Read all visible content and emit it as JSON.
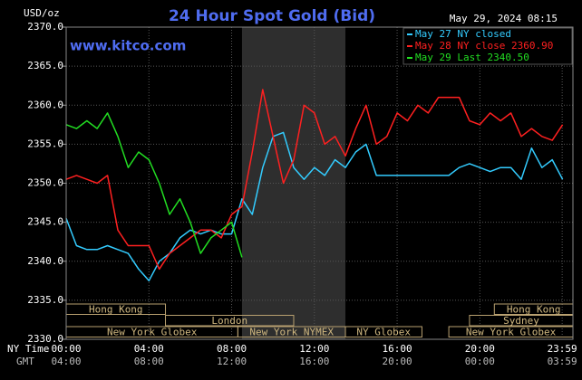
{
  "chart_data": {
    "type": "line",
    "title": "24 Hour Spot Gold (Bid)",
    "y_unit": "USD/oz",
    "timestamp": "May 29, 2024 08:15",
    "watermark": "www.kitco.com",
    "x_axis_label": "NY Time",
    "x2_axis_label": "GMT",
    "x": [
      0,
      0.5,
      1,
      1.5,
      2,
      2.5,
      3,
      3.5,
      4,
      4.5,
      5,
      5.5,
      6,
      6.5,
      7,
      7.5,
      8,
      8.5,
      9,
      9.5,
      10,
      10.5,
      11,
      11.5,
      12,
      12.5,
      13,
      13.5,
      14,
      14.5,
      15,
      15.5,
      16,
      16.5,
      17,
      17.5,
      18,
      18.5,
      19,
      19.5,
      20,
      20.5,
      21,
      21.5,
      22,
      22.5,
      23,
      23.5,
      24
    ],
    "series": [
      {
        "name": "May 27 NY closed",
        "color": "#33ccff",
        "values": [
          2345.5,
          2342,
          2341.5,
          2341.5,
          2342,
          2341.5,
          2341,
          2339,
          2337.5,
          2340,
          2341,
          2343,
          2344,
          2343.5,
          2344,
          2343.5,
          2343.5,
          2348,
          2346,
          2352,
          2356,
          2356.5,
          2352,
          2350.5,
          2352,
          2351,
          2353,
          2352,
          2354,
          2355,
          2351,
          2351,
          2351,
          2351,
          2351,
          2351,
          2351,
          2351,
          2352,
          2352.5,
          2352,
          2351.5,
          2352,
          2352,
          2350.5,
          2354.5,
          2352,
          2353,
          2350.5
        ]
      },
      {
        "name": "May 28 NY close 2360.90",
        "color": "#ff2020",
        "values": [
          2350.5,
          2351,
          2350.5,
          2350,
          2351,
          2344,
          2342,
          2342,
          2342,
          2339,
          2341,
          2342,
          2343,
          2344,
          2344,
          2343,
          2346,
          2347,
          2354,
          2362,
          2356,
          2350,
          2353,
          2360,
          2359,
          2355,
          2356,
          2353.5,
          2357,
          2360,
          2355,
          2356,
          2359,
          2358,
          2360,
          2359,
          2361,
          2361,
          2361,
          2358,
          2357.5,
          2359,
          2358,
          2359,
          2356,
          2357,
          2356,
          2355.5,
          2357.5
        ]
      },
      {
        "name": "May 29 Last 2340.50",
        "color": "#22dd22",
        "values": [
          2357.5,
          2357,
          2358,
          2357,
          2359,
          2356,
          2352,
          2354,
          2353,
          2350,
          2346,
          2348,
          2345,
          2341,
          2343,
          2344,
          2345,
          2340.5,
          null,
          null,
          null,
          null,
          null,
          null,
          null,
          null,
          null,
          null,
          null,
          null,
          null,
          null,
          null,
          null,
          null,
          null,
          null,
          null,
          null,
          null,
          null,
          null,
          null,
          null,
          null,
          null,
          null,
          null,
          null
        ]
      }
    ],
    "xlim": [
      0,
      24.5
    ],
    "xticks": [
      {
        "value": 0,
        "label": "00:00"
      },
      {
        "value": 4,
        "label": "04:00"
      },
      {
        "value": 8,
        "label": "08:00"
      },
      {
        "value": 12,
        "label": "12:00"
      },
      {
        "value": 16,
        "label": "16:00"
      },
      {
        "value": 20,
        "label": "20:00"
      },
      {
        "value": 23.98,
        "label": "23:59"
      }
    ],
    "x2_tick_labels": [
      "04:00",
      "08:00",
      "12:00",
      "16:00",
      "20:00",
      "00:00",
      "03:59"
    ],
    "ylim": [
      2330,
      2370
    ],
    "yticks": [
      {
        "value": 2330,
        "label": "2330.0"
      },
      {
        "value": 2335,
        "label": "2335.0"
      },
      {
        "value": 2340,
        "label": "2340.0"
      },
      {
        "value": 2345,
        "label": "2345.0"
      },
      {
        "value": 2350,
        "label": "2350.0"
      },
      {
        "value": 2355,
        "label": "2355.0"
      },
      {
        "value": 2360,
        "label": "2360.0"
      },
      {
        "value": 2365,
        "label": "2365.0"
      },
      {
        "value": 2370,
        "label": "2370.0"
      }
    ],
    "grid": true,
    "legend": "top-right",
    "shaded_range": [
      8.5,
      13.5
    ],
    "sessions": [
      {
        "label": "Hong Kong",
        "start": 0,
        "end": 4.8,
        "row": 0
      },
      {
        "label": "Hong Kong",
        "start": 20.7,
        "end": 24.5,
        "row": 0
      },
      {
        "label": "London",
        "start": 4.8,
        "end": 11,
        "row": 1
      },
      {
        "label": "Sydney",
        "start": 19.5,
        "end": 24.5,
        "row": 1
      },
      {
        "label": "New York Globex",
        "start": 0,
        "end": 8.3,
        "row": 2
      },
      {
        "label": "New York NYMEX",
        "start": 8.3,
        "end": 13.5,
        "row": 2
      },
      {
        "label": "NY Globex",
        "start": 13.5,
        "end": 17.2,
        "row": 2
      },
      {
        "label": "New York Globex",
        "start": 18.5,
        "end": 24.5,
        "row": 2
      }
    ]
  }
}
